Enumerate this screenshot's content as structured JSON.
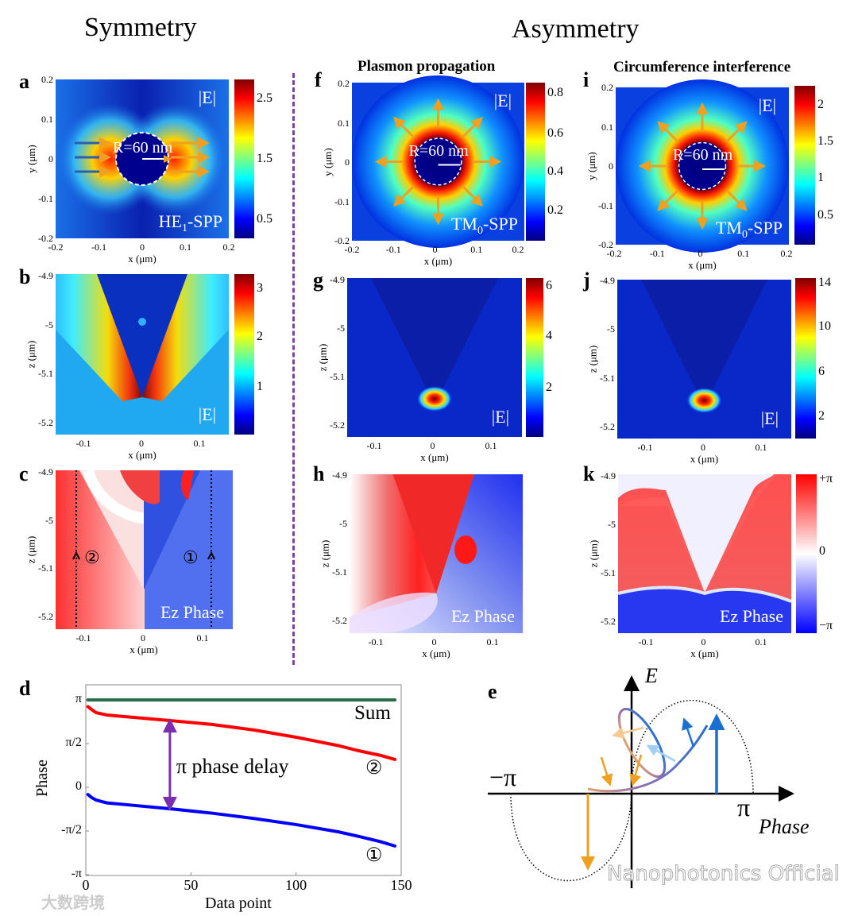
{
  "headers": {
    "symmetry": "Symmetry",
    "asymmetry": "Asymmetry",
    "f_title": "Plasmon propagation",
    "i_title": "Circumference interference"
  },
  "colors": {
    "jet": [
      "#7f0000",
      "#ff0000",
      "#ffff00",
      "#00ffff",
      "#0000ff",
      "#00007f"
    ],
    "phase": [
      "#ff0000",
      "#ffffff",
      "#0000ff"
    ],
    "divider": "#7b3fb0",
    "sum": "#2e6b4a",
    "series1": "#0000ff",
    "series2": "#ff0000",
    "arrow": "#7b2fb0"
  },
  "panels": {
    "a": {
      "letter": "a",
      "xticks": [
        "-0.2",
        "-0.1",
        "0",
        "0.1",
        "0.2"
      ],
      "yticks": [
        "0.2",
        "0.1",
        "0",
        "-0.1",
        "-0.2"
      ],
      "xlabel": "x (μm)",
      "ylabel": "y (μm)",
      "cbticks": [
        "2.5",
        "1.5",
        "0.5"
      ],
      "field": "|E|",
      "mode": "HE",
      "mode_sub": "1",
      "mode_suffix": "-SPP",
      "radius": "R=60 nm"
    },
    "b": {
      "letter": "b",
      "xticks": [
        "-0.1",
        "0",
        "0.1"
      ],
      "yticks": [
        "-4.9",
        "-5",
        "-5.1",
        "-5.2"
      ],
      "xlabel": "x (μm)",
      "ylabel": "z (μm)",
      "cbticks": [
        "3",
        "2",
        "1"
      ],
      "field": "|E|"
    },
    "c": {
      "letter": "c",
      "xticks": [
        "-0.1",
        "0",
        "0.1"
      ],
      "yticks": [
        "-4.9",
        "-5",
        "-5.1",
        "-5.2"
      ],
      "xlabel": "x (μm)",
      "ylabel": "z (μm)",
      "label": "Ez Phase",
      "path1": "①",
      "path2": "②"
    },
    "f": {
      "letter": "f",
      "xticks": [
        "-0.2",
        "-0.1",
        "0",
        "0.1",
        "0.2"
      ],
      "yticks": [
        "0.2",
        "0.1",
        "0",
        "-0.1",
        "-0.2"
      ],
      "xlabel": "x (μm)",
      "ylabel": "y (μm)",
      "cbticks": [
        "0.8",
        "0.6",
        "0.4",
        "0.2"
      ],
      "field": "|E|",
      "mode": "TM",
      "mode_sub": "0",
      "mode_suffix": "-SPP",
      "radius": "R=60 nm"
    },
    "g": {
      "letter": "g",
      "xticks": [
        "-0.1",
        "0",
        "0.1"
      ],
      "yticks": [
        "-4.9",
        "-5",
        "-5.1",
        "-5.2"
      ],
      "xlabel": "x (μm)",
      "ylabel": "z (μm)",
      "cbticks": [
        "6",
        "4",
        "2"
      ],
      "field": "|E|"
    },
    "h": {
      "letter": "h",
      "xticks": [
        "-0.1",
        "0",
        "0.1"
      ],
      "yticks": [
        "-4.9",
        "-5",
        "-5.1",
        "-5.2"
      ],
      "xlabel": "x (μm)",
      "ylabel": "z (μm)",
      "label": "Ez Phase"
    },
    "i": {
      "letter": "i",
      "xticks": [
        "-0.2",
        "-0.1",
        "0",
        "0.1",
        "0.2"
      ],
      "yticks": [
        "0.2",
        "0.1",
        "0",
        "-0.1",
        "-0.2"
      ],
      "xlabel": "x (μm)",
      "ylabel": "y (μm)",
      "cbticks": [
        "2",
        "1.5",
        "1",
        "0.5"
      ],
      "field": "|E|",
      "mode": "TM",
      "mode_sub": "0",
      "mode_suffix": "-SPP",
      "radius": "R=60 nm"
    },
    "j": {
      "letter": "j",
      "xticks": [
        "-0.1",
        "0",
        "0.1"
      ],
      "yticks": [
        "-4.9",
        "-5",
        "-5.1",
        "-5.2"
      ],
      "xlabel": "x (μm)",
      "ylabel": "z (μm)",
      "cbticks": [
        "14",
        "10",
        "6",
        "2"
      ],
      "field": "|E|"
    },
    "k": {
      "letter": "k",
      "xticks": [
        "-0.1",
        "0",
        "0.1"
      ],
      "yticks": [
        "-4.9",
        "-5",
        "-5.1",
        "-5.2"
      ],
      "xlabel": "x (μm)",
      "ylabel": "z (μm)",
      "cbticks": [
        "+π",
        "0",
        "−π"
      ],
      "label": "Ez Phase"
    }
  },
  "chart_data": {
    "type": "line",
    "letter": "d",
    "xlabel": "Data point",
    "ylabel": "Phase",
    "xlim": [
      0,
      150
    ],
    "ylim": [
      -3.1416,
      3.1416
    ],
    "xticks": [
      {
        "v": 0,
        "t": "0"
      },
      {
        "v": 50,
        "t": "50"
      },
      {
        "v": 100,
        "t": "100"
      },
      {
        "v": 150,
        "t": "150"
      }
    ],
    "yticks": [
      {
        "v": 3.1416,
        "t": "π"
      },
      {
        "v": 1.5708,
        "t": "π/2"
      },
      {
        "v": 0,
        "t": "0"
      },
      {
        "v": -1.5708,
        "t": "-π/2"
      },
      {
        "v": -3.1416,
        "t": "-π"
      }
    ],
    "series": [
      {
        "name": "Sum",
        "color": "#2e6b4a",
        "x": [
          1,
          147
        ],
        "y": [
          3.1416,
          3.1416
        ]
      },
      {
        "name": "②",
        "color": "#ff0000",
        "x": [
          1,
          3,
          5,
          10,
          20,
          40,
          60,
          80,
          100,
          120,
          130,
          140,
          147
        ],
        "y": [
          2.9,
          2.78,
          2.68,
          2.6,
          2.53,
          2.4,
          2.26,
          2.06,
          1.8,
          1.5,
          1.31,
          1.15,
          1.0
        ]
      },
      {
        "name": "①",
        "color": "#0000ff",
        "x": [
          1,
          3,
          5,
          10,
          20,
          40,
          60,
          80,
          100,
          120,
          130,
          140,
          147
        ],
        "y": [
          -0.26,
          -0.38,
          -0.46,
          -0.56,
          -0.63,
          -0.77,
          -0.93,
          -1.12,
          -1.34,
          -1.6,
          -1.77,
          -1.95,
          -2.11
        ]
      }
    ],
    "annotation": "π phase delay",
    "annotation_x": 40,
    "annotation_y": [
      2.4,
      -0.77
    ]
  },
  "diagram_e": {
    "letter": "e",
    "y_axis": "E",
    "neg_pi": "−π",
    "pos_pi": "π",
    "x_axis": "Phase"
  },
  "watermarks": {
    "left": "大数跨境",
    "right": "Nanophotonics Official"
  }
}
